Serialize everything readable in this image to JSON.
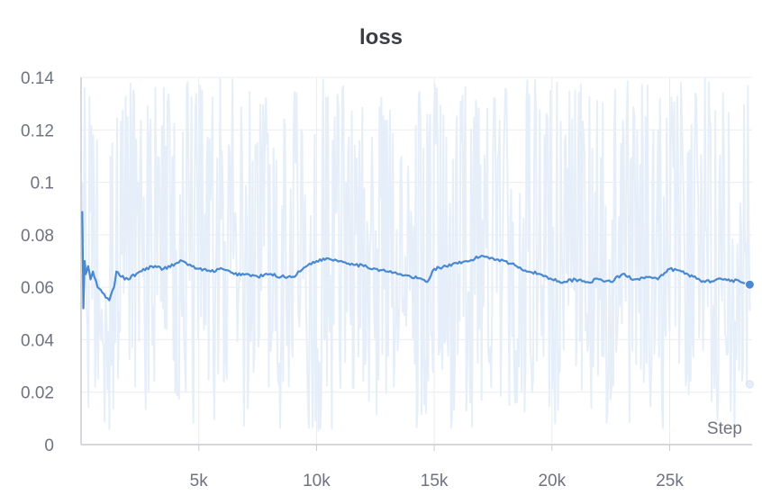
{
  "chart_data": {
    "type": "line",
    "title": "loss",
    "xlabel": "Step",
    "ylabel": "",
    "xlim": [
      0,
      28500
    ],
    "ylim": [
      0,
      0.14
    ],
    "yticks": [
      {
        "value": 0,
        "label": "0"
      },
      {
        "value": 0.02,
        "label": "0.02"
      },
      {
        "value": 0.04,
        "label": "0.04"
      },
      {
        "value": 0.06,
        "label": "0.06"
      },
      {
        "value": 0.08,
        "label": "0.08"
      },
      {
        "value": 0.1,
        "label": "0.1"
      },
      {
        "value": 0.12,
        "label": "0.12"
      },
      {
        "value": 0.14,
        "label": "0.14"
      }
    ],
    "xticks": [
      {
        "value": 5000,
        "label": "5k"
      },
      {
        "value": 10000,
        "label": "10k"
      },
      {
        "value": 15000,
        "label": "15k"
      },
      {
        "value": 20000,
        "label": "20k"
      },
      {
        "value": 25000,
        "label": "25k"
      }
    ],
    "grid": true,
    "colors": {
      "smoothed": "#4a88d0",
      "raw": "#e6eff9"
    },
    "raw_band": {
      "min": 0.0,
      "max": 0.14
    },
    "raw_last_point": {
      "x": 28400,
      "y": 0.023
    },
    "series": [
      {
        "smoothed": true,
        "x": [
          50,
          100,
          150,
          200,
          300,
          400,
          500,
          700,
          900,
          1200,
          1400,
          1500,
          1700,
          2000,
          2500,
          3000,
          3500,
          4000,
          4300,
          4700,
          5000,
          5500,
          6000,
          6500,
          7000,
          7500,
          8000,
          8500,
          9000,
          9300,
          9700,
          10000,
          10500,
          11000,
          11500,
          12000,
          12500,
          13000,
          13500,
          14000,
          14500,
          14700,
          15000,
          15500,
          16000,
          16500,
          17000,
          17500,
          18000,
          18500,
          19000,
          19500,
          20000,
          20500,
          21000,
          21500,
          22000,
          22500,
          23000,
          23500,
          24000,
          24500,
          25000,
          25500,
          26000,
          26500,
          27000,
          27500,
          28000,
          28400
        ],
        "y": [
          0.089,
          0.052,
          0.07,
          0.065,
          0.068,
          0.063,
          0.066,
          0.06,
          0.058,
          0.055,
          0.06,
          0.066,
          0.064,
          0.063,
          0.066,
          0.068,
          0.067,
          0.069,
          0.07,
          0.068,
          0.067,
          0.066,
          0.067,
          0.065,
          0.065,
          0.064,
          0.065,
          0.064,
          0.064,
          0.066,
          0.069,
          0.07,
          0.071,
          0.07,
          0.069,
          0.068,
          0.067,
          0.066,
          0.065,
          0.064,
          0.063,
          0.062,
          0.067,
          0.068,
          0.069,
          0.07,
          0.072,
          0.071,
          0.07,
          0.068,
          0.066,
          0.065,
          0.063,
          0.062,
          0.063,
          0.062,
          0.063,
          0.062,
          0.065,
          0.063,
          0.064,
          0.063,
          0.067,
          0.066,
          0.064,
          0.062,
          0.063,
          0.063,
          0.062,
          0.061
        ]
      }
    ],
    "last_point": {
      "x": 28400,
      "y": 0.061
    }
  }
}
